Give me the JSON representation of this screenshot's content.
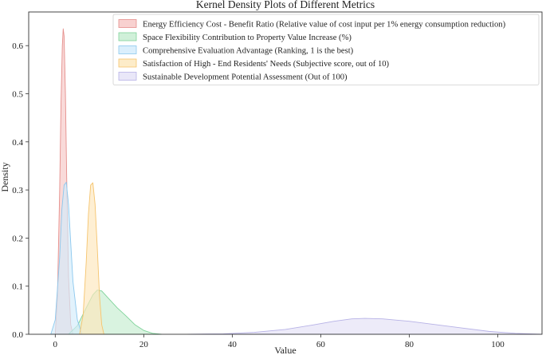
{
  "chart_data": {
    "type": "area",
    "title": "Kernel Density Plots of Different Metrics",
    "xlabel": "Value",
    "ylabel": "Density",
    "xlim": [
      -6,
      110
    ],
    "ylim": [
      0,
      0.67
    ],
    "xticks": [
      0,
      20,
      40,
      60,
      80,
      100
    ],
    "xtick_labels": [
      "0",
      "20",
      "40",
      "60",
      "80",
      "100"
    ],
    "yticks": [
      0.0,
      0.1,
      0.2,
      0.3,
      0.4,
      0.5,
      0.6
    ],
    "ytick_labels": [
      "0.0",
      "0.1",
      "0.2",
      "0.3",
      "0.4",
      "0.5",
      "0.6"
    ],
    "grid": false,
    "legend_position": "top-right",
    "series": [
      {
        "name": "Energy Efficiency Cost - Benefit Ratio (Relative value of cost input per 1% energy consumption reduction)",
        "fill": "#f6c6c4",
        "stroke": "#e58f8c",
        "x": [
          0,
          0.5,
          1.0,
          1.3,
          1.6,
          1.8,
          2.0,
          2.3,
          2.6,
          3.0,
          3.5,
          4.0
        ],
        "y": [
          0.0,
          0.08,
          0.3,
          0.48,
          0.6,
          0.635,
          0.62,
          0.5,
          0.32,
          0.12,
          0.02,
          0.0
        ]
      },
      {
        "name": "Space Flexibility Contribution to Property Value Increase (%)",
        "fill": "#c4ecd0",
        "stroke": "#7fd39a",
        "x": [
          3,
          5,
          7,
          8.5,
          9.5,
          10.5,
          12,
          14,
          16,
          18,
          20,
          22,
          24
        ],
        "y": [
          0.0,
          0.018,
          0.055,
          0.082,
          0.092,
          0.09,
          0.075,
          0.055,
          0.038,
          0.02,
          0.008,
          0.002,
          0.0
        ]
      },
      {
        "name": "Comprehensive Evaluation Advantage (Ranking, 1 is the best)",
        "fill": "#d2ebfb",
        "stroke": "#8cc8ee",
        "x": [
          -1,
          0,
          1,
          1.5,
          2.0,
          2.5,
          3.0,
          3.5,
          4.0,
          5.0,
          6.0
        ],
        "y": [
          0.0,
          0.03,
          0.16,
          0.26,
          0.31,
          0.316,
          0.27,
          0.19,
          0.11,
          0.03,
          0.0
        ]
      },
      {
        "name": "Satisfaction of High - End Residents' Needs (Subjective score, out of 10)",
        "fill": "#fde7bc",
        "stroke": "#f5c46e",
        "x": [
          5.5,
          6.3,
          7.0,
          7.5,
          8.0,
          8.5,
          9.0,
          9.5,
          10.0,
          10.5,
          11.0
        ],
        "y": [
          0.0,
          0.04,
          0.15,
          0.25,
          0.31,
          0.315,
          0.27,
          0.18,
          0.08,
          0.02,
          0.0
        ]
      },
      {
        "name": "Sustainable Development Potential Assessment (Out of 100)",
        "fill": "#e3e1f6",
        "stroke": "#b7b2e6",
        "x": [
          30,
          38,
          45,
          52,
          58,
          63,
          67,
          70,
          74,
          80,
          86,
          92,
          98,
          104,
          110
        ],
        "y": [
          0.0,
          0.001,
          0.004,
          0.01,
          0.019,
          0.027,
          0.032,
          0.033,
          0.032,
          0.027,
          0.02,
          0.013,
          0.006,
          0.002,
          0.0
        ]
      }
    ]
  }
}
